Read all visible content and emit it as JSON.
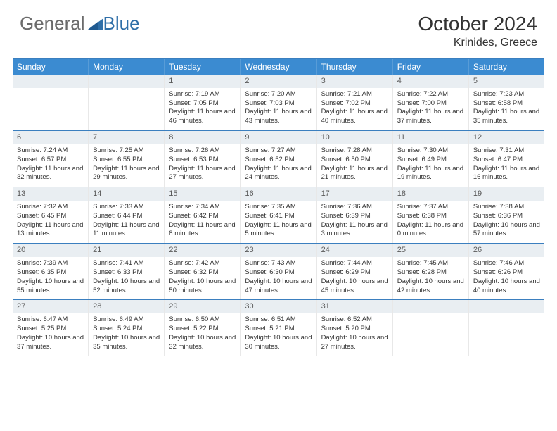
{
  "logo": {
    "text_a": "General",
    "text_b": "Blue"
  },
  "header": {
    "title": "October 2024",
    "location": "Krinides, Greece"
  },
  "colors": {
    "header_bar": "#3b8bd1",
    "rule": "#3b7fbf",
    "daynum_bg": "#e9eef2",
    "text": "#333333",
    "logo_gray": "#6b6b6b",
    "logo_blue": "#2f6fa8"
  },
  "day_names": [
    "Sunday",
    "Monday",
    "Tuesday",
    "Wednesday",
    "Thursday",
    "Friday",
    "Saturday"
  ],
  "weeks": [
    [
      null,
      null,
      {
        "n": "1",
        "sr": "7:19 AM",
        "ss": "7:05 PM",
        "dl": "11 hours and 46 minutes."
      },
      {
        "n": "2",
        "sr": "7:20 AM",
        "ss": "7:03 PM",
        "dl": "11 hours and 43 minutes."
      },
      {
        "n": "3",
        "sr": "7:21 AM",
        "ss": "7:02 PM",
        "dl": "11 hours and 40 minutes."
      },
      {
        "n": "4",
        "sr": "7:22 AM",
        "ss": "7:00 PM",
        "dl": "11 hours and 37 minutes."
      },
      {
        "n": "5",
        "sr": "7:23 AM",
        "ss": "6:58 PM",
        "dl": "11 hours and 35 minutes."
      }
    ],
    [
      {
        "n": "6",
        "sr": "7:24 AM",
        "ss": "6:57 PM",
        "dl": "11 hours and 32 minutes."
      },
      {
        "n": "7",
        "sr": "7:25 AM",
        "ss": "6:55 PM",
        "dl": "11 hours and 29 minutes."
      },
      {
        "n": "8",
        "sr": "7:26 AM",
        "ss": "6:53 PM",
        "dl": "11 hours and 27 minutes."
      },
      {
        "n": "9",
        "sr": "7:27 AM",
        "ss": "6:52 PM",
        "dl": "11 hours and 24 minutes."
      },
      {
        "n": "10",
        "sr": "7:28 AM",
        "ss": "6:50 PM",
        "dl": "11 hours and 21 minutes."
      },
      {
        "n": "11",
        "sr": "7:30 AM",
        "ss": "6:49 PM",
        "dl": "11 hours and 19 minutes."
      },
      {
        "n": "12",
        "sr": "7:31 AM",
        "ss": "6:47 PM",
        "dl": "11 hours and 16 minutes."
      }
    ],
    [
      {
        "n": "13",
        "sr": "7:32 AM",
        "ss": "6:45 PM",
        "dl": "11 hours and 13 minutes."
      },
      {
        "n": "14",
        "sr": "7:33 AM",
        "ss": "6:44 PM",
        "dl": "11 hours and 11 minutes."
      },
      {
        "n": "15",
        "sr": "7:34 AM",
        "ss": "6:42 PM",
        "dl": "11 hours and 8 minutes."
      },
      {
        "n": "16",
        "sr": "7:35 AM",
        "ss": "6:41 PM",
        "dl": "11 hours and 5 minutes."
      },
      {
        "n": "17",
        "sr": "7:36 AM",
        "ss": "6:39 PM",
        "dl": "11 hours and 3 minutes."
      },
      {
        "n": "18",
        "sr": "7:37 AM",
        "ss": "6:38 PM",
        "dl": "11 hours and 0 minutes."
      },
      {
        "n": "19",
        "sr": "7:38 AM",
        "ss": "6:36 PM",
        "dl": "10 hours and 57 minutes."
      }
    ],
    [
      {
        "n": "20",
        "sr": "7:39 AM",
        "ss": "6:35 PM",
        "dl": "10 hours and 55 minutes."
      },
      {
        "n": "21",
        "sr": "7:41 AM",
        "ss": "6:33 PM",
        "dl": "10 hours and 52 minutes."
      },
      {
        "n": "22",
        "sr": "7:42 AM",
        "ss": "6:32 PM",
        "dl": "10 hours and 50 minutes."
      },
      {
        "n": "23",
        "sr": "7:43 AM",
        "ss": "6:30 PM",
        "dl": "10 hours and 47 minutes."
      },
      {
        "n": "24",
        "sr": "7:44 AM",
        "ss": "6:29 PM",
        "dl": "10 hours and 45 minutes."
      },
      {
        "n": "25",
        "sr": "7:45 AM",
        "ss": "6:28 PM",
        "dl": "10 hours and 42 minutes."
      },
      {
        "n": "26",
        "sr": "7:46 AM",
        "ss": "6:26 PM",
        "dl": "10 hours and 40 minutes."
      }
    ],
    [
      {
        "n": "27",
        "sr": "6:47 AM",
        "ss": "5:25 PM",
        "dl": "10 hours and 37 minutes."
      },
      {
        "n": "28",
        "sr": "6:49 AM",
        "ss": "5:24 PM",
        "dl": "10 hours and 35 minutes."
      },
      {
        "n": "29",
        "sr": "6:50 AM",
        "ss": "5:22 PM",
        "dl": "10 hours and 32 minutes."
      },
      {
        "n": "30",
        "sr": "6:51 AM",
        "ss": "5:21 PM",
        "dl": "10 hours and 30 minutes."
      },
      {
        "n": "31",
        "sr": "6:52 AM",
        "ss": "5:20 PM",
        "dl": "10 hours and 27 minutes."
      },
      null,
      null
    ]
  ],
  "labels": {
    "sunrise": "Sunrise: ",
    "sunset": "Sunset: ",
    "daylight": "Daylight: "
  }
}
